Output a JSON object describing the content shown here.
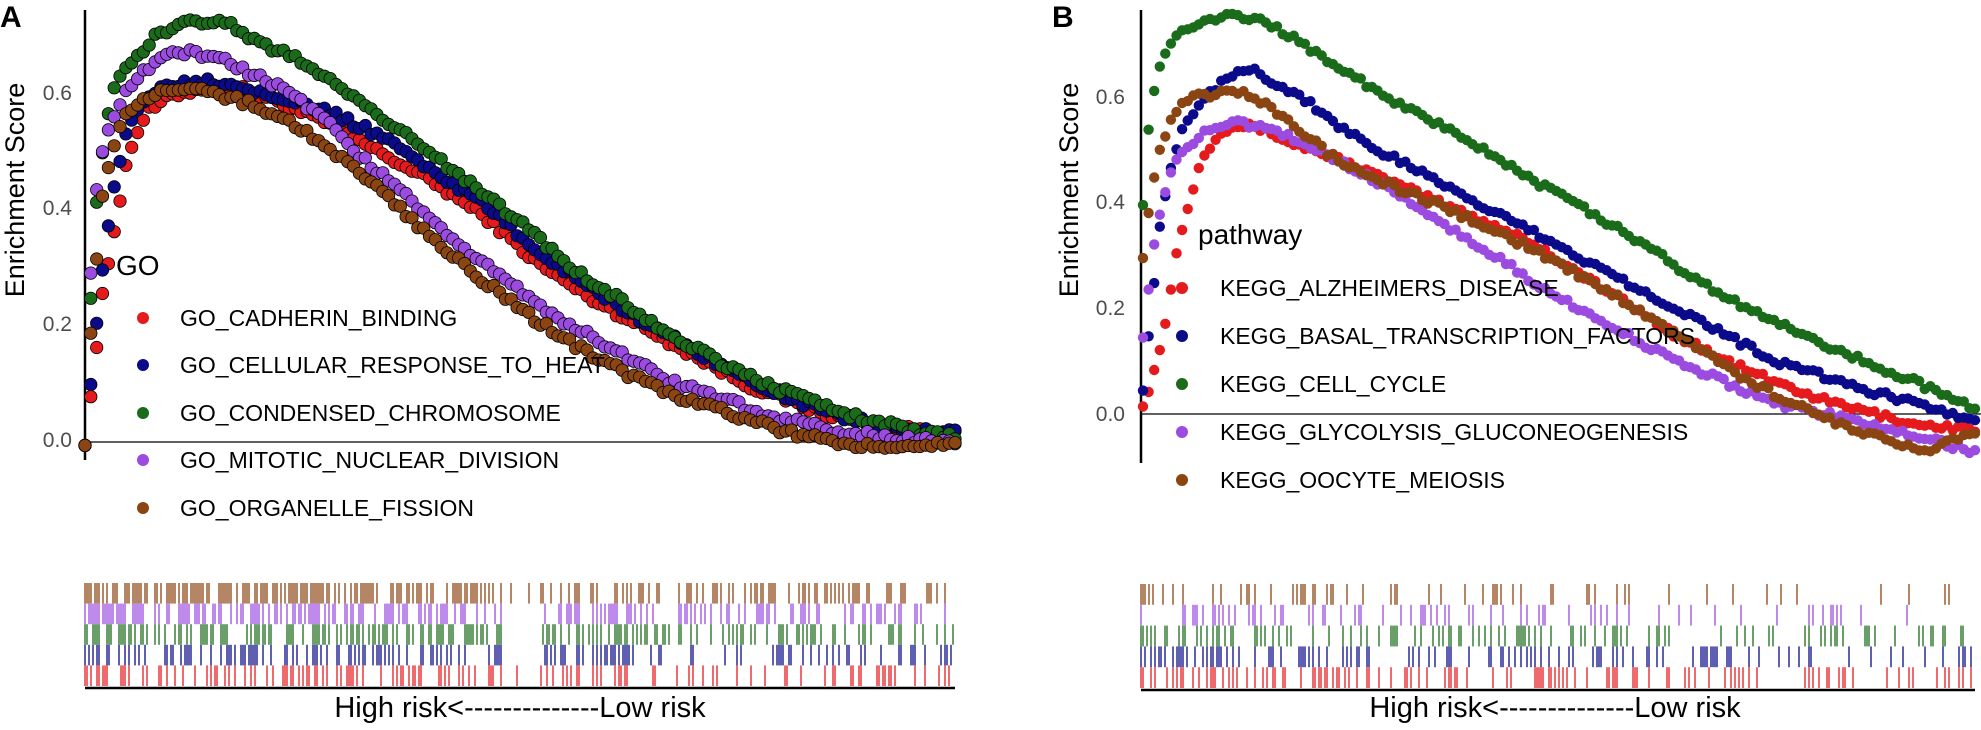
{
  "chart_data": [
    {
      "type": "line",
      "panel_label": "A",
      "ylabel": "Enrichment Score",
      "xlabel": "High risk<--------------Low risk",
      "ylim": [
        -0.02,
        0.75
      ],
      "y_ticks": [
        0.0,
        0.2,
        0.4,
        0.6
      ],
      "y_tick_labels": [
        "0.0",
        "0.2",
        "0.4",
        "0.6"
      ],
      "x_range": [
        0,
        1
      ],
      "legend_title": "GO",
      "series": [
        {
          "name": "GO_CADHERIN_BINDING",
          "color": "#e41a1c",
          "x": [
            0.0,
            0.01,
            0.02,
            0.035,
            0.05,
            0.07,
            0.1,
            0.14,
            0.18,
            0.22,
            0.28,
            0.34,
            0.4,
            0.46,
            0.52,
            0.58,
            0.64,
            0.7,
            0.76,
            0.82,
            0.87,
            0.91,
            0.95,
            1.0
          ],
          "y": [
            0.0,
            0.12,
            0.25,
            0.38,
            0.5,
            0.57,
            0.6,
            0.615,
            0.61,
            0.59,
            0.55,
            0.5,
            0.45,
            0.39,
            0.31,
            0.25,
            0.2,
            0.15,
            0.1,
            0.065,
            0.04,
            0.03,
            0.02,
            0.015
          ]
        },
        {
          "name": "GO_CELLULAR_RESPONSE_TO_HEAT",
          "color": "#0a0a8a",
          "x": [
            0.0,
            0.01,
            0.02,
            0.035,
            0.05,
            0.07,
            0.1,
            0.14,
            0.18,
            0.22,
            0.28,
            0.34,
            0.4,
            0.46,
            0.52,
            0.58,
            0.64,
            0.7,
            0.76,
            0.82,
            0.87,
            0.91,
            0.95,
            1.0
          ],
          "y": [
            0.0,
            0.15,
            0.3,
            0.45,
            0.55,
            0.6,
            0.62,
            0.625,
            0.615,
            0.6,
            0.57,
            0.53,
            0.47,
            0.41,
            0.33,
            0.27,
            0.21,
            0.16,
            0.11,
            0.07,
            0.045,
            0.03,
            0.02,
            0.015
          ]
        },
        {
          "name": "GO_CONDENSED_CHROMOSOME",
          "color": "#1a6b1a",
          "x": [
            0.0,
            0.005,
            0.012,
            0.02,
            0.03,
            0.045,
            0.06,
            0.08,
            0.1,
            0.12,
            0.14,
            0.17,
            0.2,
            0.24,
            0.28,
            0.32,
            0.38,
            0.44,
            0.5,
            0.56,
            0.62,
            0.68,
            0.74,
            0.8,
            0.86,
            0.91,
            0.95,
            1.0
          ],
          "y": [
            0.0,
            0.2,
            0.4,
            0.5,
            0.6,
            0.64,
            0.67,
            0.7,
            0.715,
            0.725,
            0.73,
            0.72,
            0.69,
            0.665,
            0.63,
            0.585,
            0.52,
            0.45,
            0.38,
            0.3,
            0.24,
            0.18,
            0.13,
            0.09,
            0.055,
            0.035,
            0.02,
            0.01
          ]
        },
        {
          "name": "GO_MITOTIC_NUCLEAR_DIVISION",
          "color": "#9b4be0",
          "x": [
            0.0,
            0.005,
            0.012,
            0.02,
            0.03,
            0.045,
            0.06,
            0.08,
            0.1,
            0.12,
            0.14,
            0.17,
            0.2,
            0.24,
            0.28,
            0.32,
            0.38,
            0.44,
            0.5,
            0.56,
            0.62,
            0.68,
            0.74,
            0.8,
            0.86,
            0.91,
            0.95,
            1.0
          ],
          "y": [
            0.0,
            0.25,
            0.42,
            0.5,
            0.55,
            0.6,
            0.63,
            0.655,
            0.67,
            0.675,
            0.67,
            0.655,
            0.63,
            0.6,
            0.55,
            0.49,
            0.41,
            0.33,
            0.26,
            0.2,
            0.15,
            0.1,
            0.07,
            0.04,
            0.02,
            0.01,
            0.005,
            0.0
          ]
        },
        {
          "name": "GO_ORGANELLE_FISSION",
          "color": "#8b4513",
          "x": [
            0.0,
            0.005,
            0.012,
            0.02,
            0.03,
            0.045,
            0.06,
            0.08,
            0.1,
            0.12,
            0.14,
            0.17,
            0.2,
            0.24,
            0.28,
            0.32,
            0.38,
            0.44,
            0.5,
            0.56,
            0.62,
            0.68,
            0.74,
            0.8,
            0.86,
            0.91,
            0.95,
            1.0
          ],
          "y": [
            0.0,
            0.15,
            0.3,
            0.42,
            0.5,
            0.56,
            0.585,
            0.6,
            0.61,
            0.61,
            0.605,
            0.595,
            0.58,
            0.55,
            0.51,
            0.46,
            0.38,
            0.3,
            0.23,
            0.17,
            0.12,
            0.08,
            0.05,
            0.02,
            0.0,
            -0.01,
            -0.005,
            0.0
          ]
        }
      ],
      "rug_colors": [
        "#8b4513",
        "#9b4be0",
        "#1a6b1a",
        "#0a0a8a",
        "#e41a1c"
      ]
    },
    {
      "type": "line",
      "panel_label": "B",
      "ylabel": "Enrichment Score",
      "xlabel": "High risk<--------------Low risk",
      "ylim": [
        -0.1,
        0.77
      ],
      "y_ticks": [
        0.0,
        0.2,
        0.4,
        0.6
      ],
      "y_tick_labels": [
        "0.0",
        "0.2",
        "0.4",
        "0.6"
      ],
      "x_range": [
        0,
        1
      ],
      "legend_title": "pathway",
      "series": [
        {
          "name": "KEGG_ALZHEIMERS_DISEASE",
          "color": "#e41a1c",
          "x": [
            0.0,
            0.01,
            0.02,
            0.03,
            0.04,
            0.055,
            0.07,
            0.09,
            0.11,
            0.14,
            0.18,
            0.22,
            0.28,
            0.34,
            0.4,
            0.46,
            0.52,
            0.58,
            0.64,
            0.7,
            0.76,
            0.82,
            0.88,
            0.93,
            0.97,
            1.0
          ],
          "y": [
            0.02,
            0.06,
            0.12,
            0.2,
            0.3,
            0.4,
            0.48,
            0.53,
            0.545,
            0.54,
            0.51,
            0.49,
            0.45,
            0.41,
            0.37,
            0.33,
            0.27,
            0.21,
            0.15,
            0.1,
            0.06,
            0.025,
            0.0,
            -0.02,
            -0.025,
            -0.03
          ]
        },
        {
          "name": "KEGG_BASAL_TRANSCRIPTION_FACTORS",
          "color": "#0a0a8a",
          "x": [
            0.0,
            0.01,
            0.02,
            0.035,
            0.05,
            0.07,
            0.09,
            0.11,
            0.13,
            0.16,
            0.19,
            0.23,
            0.28,
            0.34,
            0.4,
            0.46,
            0.52,
            0.58,
            0.64,
            0.7,
            0.76,
            0.82,
            0.88,
            0.93,
            0.97,
            1.0
          ],
          "y": [
            0.05,
            0.2,
            0.35,
            0.48,
            0.55,
            0.59,
            0.62,
            0.645,
            0.655,
            0.62,
            0.6,
            0.55,
            0.5,
            0.45,
            0.4,
            0.35,
            0.3,
            0.25,
            0.2,
            0.15,
            0.1,
            0.07,
            0.04,
            0.02,
            0.0,
            -0.01
          ]
        },
        {
          "name": "KEGG_CELL_CYCLE",
          "color": "#1a6b1a",
          "x": [
            0.0,
            0.005,
            0.012,
            0.02,
            0.03,
            0.045,
            0.06,
            0.08,
            0.1,
            0.12,
            0.14,
            0.16,
            0.19,
            0.22,
            0.26,
            0.3,
            0.35,
            0.42,
            0.48,
            0.55,
            0.62,
            0.68,
            0.75,
            0.82,
            0.88,
            0.93,
            0.97,
            1.0
          ],
          "y": [
            0.4,
            0.52,
            0.6,
            0.65,
            0.7,
            0.72,
            0.735,
            0.745,
            0.75,
            0.75,
            0.745,
            0.73,
            0.7,
            0.67,
            0.63,
            0.59,
            0.55,
            0.49,
            0.43,
            0.37,
            0.3,
            0.24,
            0.18,
            0.13,
            0.09,
            0.06,
            0.03,
            0.01
          ]
        },
        {
          "name": "KEGG_GLYCOLYSIS_GLUCONEOGENESIS",
          "color": "#9b4be0",
          "x": [
            0.0,
            0.01,
            0.02,
            0.035,
            0.05,
            0.07,
            0.09,
            0.11,
            0.14,
            0.18,
            0.22,
            0.28,
            0.34,
            0.4,
            0.46,
            0.52,
            0.58,
            0.64,
            0.7,
            0.76,
            0.82,
            0.88,
            0.93,
            0.97,
            1.0
          ],
          "y": [
            0.15,
            0.28,
            0.38,
            0.46,
            0.5,
            0.53,
            0.545,
            0.55,
            0.54,
            0.52,
            0.49,
            0.44,
            0.38,
            0.32,
            0.26,
            0.2,
            0.15,
            0.1,
            0.06,
            0.02,
            0.0,
            -0.02,
            -0.04,
            -0.06,
            -0.07
          ]
        },
        {
          "name": "KEGG_OOCYTE_MEIOSIS",
          "color": "#8b4513",
          "x": [
            0.0,
            0.01,
            0.02,
            0.035,
            0.05,
            0.07,
            0.09,
            0.11,
            0.13,
            0.16,
            0.2,
            0.24,
            0.3,
            0.36,
            0.42,
            0.48,
            0.54,
            0.6,
            0.66,
            0.72,
            0.78,
            0.84,
            0.9,
            0.94,
            0.97,
            1.0
          ],
          "y": [
            0.3,
            0.42,
            0.5,
            0.56,
            0.59,
            0.6,
            0.605,
            0.61,
            0.6,
            0.57,
            0.52,
            0.47,
            0.43,
            0.39,
            0.35,
            0.3,
            0.25,
            0.19,
            0.13,
            0.07,
            0.02,
            -0.02,
            -0.05,
            -0.07,
            -0.05,
            -0.04
          ]
        }
      ],
      "rug_colors": [
        "#8b4513",
        "#9b4be0",
        "#1a6b1a",
        "#0a0a8a",
        "#e41a1c"
      ]
    }
  ]
}
